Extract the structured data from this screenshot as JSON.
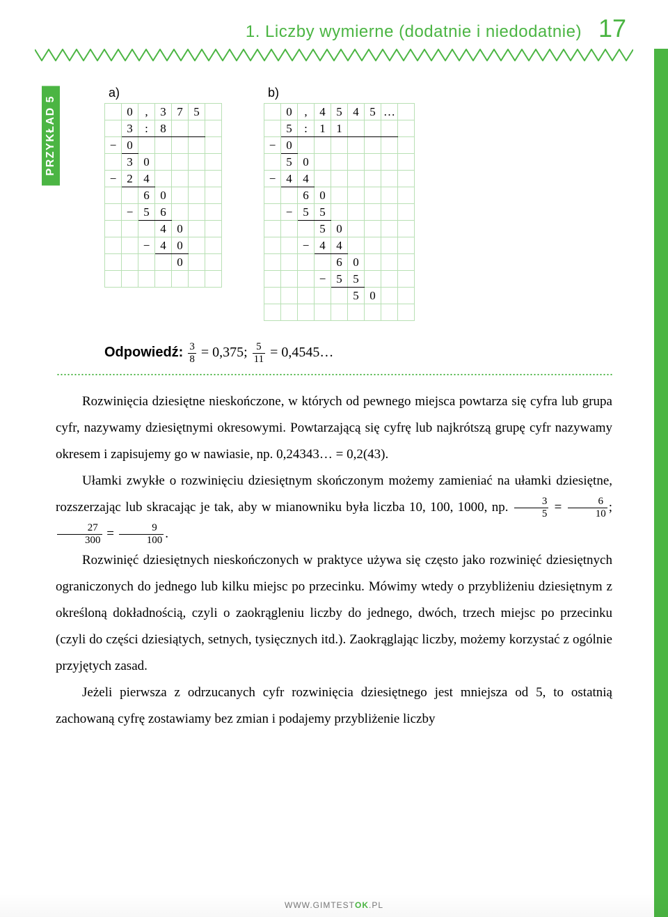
{
  "header": {
    "title": "1. Liczby wymierne (dodatnie i niedodatnie)",
    "page": "17"
  },
  "example_label": "PRZYKŁAD 5",
  "colors": {
    "accent": "#4bb543",
    "grid": "#b8e0b4"
  },
  "divisions": {
    "a": {
      "label": "a)",
      "cols": 7,
      "rows": 11,
      "cells": [
        {
          "r": 0,
          "c": 1,
          "t": "0"
        },
        {
          "r": 0,
          "c": 2,
          "t": ","
        },
        {
          "r": 0,
          "c": 3,
          "t": "3"
        },
        {
          "r": 0,
          "c": 4,
          "t": "7"
        },
        {
          "r": 0,
          "c": 5,
          "t": "5"
        },
        {
          "r": 1,
          "c": 1,
          "t": "3",
          "ub": true
        },
        {
          "r": 1,
          "c": 2,
          "t": ":",
          "ub": true
        },
        {
          "r": 1,
          "c": 3,
          "t": "8",
          "ub": true
        },
        {
          "r": 1,
          "c": 4,
          "t": "",
          "ub": true
        },
        {
          "r": 1,
          "c": 5,
          "t": "",
          "ub": true
        },
        {
          "r": 2,
          "c": 0,
          "t": "−"
        },
        {
          "r": 2,
          "c": 1,
          "t": "0",
          "ub": true
        },
        {
          "r": 3,
          "c": 1,
          "t": "3"
        },
        {
          "r": 3,
          "c": 2,
          "t": "0"
        },
        {
          "r": 4,
          "c": 0,
          "t": "−"
        },
        {
          "r": 4,
          "c": 1,
          "t": "2",
          "ub": true
        },
        {
          "r": 4,
          "c": 2,
          "t": "4",
          "ub": true
        },
        {
          "r": 5,
          "c": 2,
          "t": "6"
        },
        {
          "r": 5,
          "c": 3,
          "t": "0"
        },
        {
          "r": 6,
          "c": 1,
          "t": "−"
        },
        {
          "r": 6,
          "c": 2,
          "t": "5",
          "ub": true
        },
        {
          "r": 6,
          "c": 3,
          "t": "6",
          "ub": true
        },
        {
          "r": 7,
          "c": 3,
          "t": "4"
        },
        {
          "r": 7,
          "c": 4,
          "t": "0"
        },
        {
          "r": 8,
          "c": 2,
          "t": "−"
        },
        {
          "r": 8,
          "c": 3,
          "t": "4",
          "ub": true
        },
        {
          "r": 8,
          "c": 4,
          "t": "0",
          "ub": true
        },
        {
          "r": 9,
          "c": 4,
          "t": "0"
        }
      ]
    },
    "b": {
      "label": "b)",
      "cols": 9,
      "rows": 13,
      "cells": [
        {
          "r": 0,
          "c": 1,
          "t": "0"
        },
        {
          "r": 0,
          "c": 2,
          "t": ","
        },
        {
          "r": 0,
          "c": 3,
          "t": "4"
        },
        {
          "r": 0,
          "c": 4,
          "t": "5"
        },
        {
          "r": 0,
          "c": 5,
          "t": "4"
        },
        {
          "r": 0,
          "c": 6,
          "t": "5"
        },
        {
          "r": 0,
          "c": 7,
          "t": "…"
        },
        {
          "r": 1,
          "c": 1,
          "t": "5",
          "ub": true
        },
        {
          "r": 1,
          "c": 2,
          "t": ":",
          "ub": true
        },
        {
          "r": 1,
          "c": 3,
          "t": "1",
          "ub": true
        },
        {
          "r": 1,
          "c": 4,
          "t": "1",
          "ub": true
        },
        {
          "r": 1,
          "c": 5,
          "t": "",
          "ub": true
        },
        {
          "r": 1,
          "c": 6,
          "t": "",
          "ub": true
        },
        {
          "r": 1,
          "c": 7,
          "t": "",
          "ub": true
        },
        {
          "r": 2,
          "c": 0,
          "t": "−"
        },
        {
          "r": 2,
          "c": 1,
          "t": "0",
          "ub": true
        },
        {
          "r": 3,
          "c": 1,
          "t": "5"
        },
        {
          "r": 3,
          "c": 2,
          "t": "0"
        },
        {
          "r": 4,
          "c": 0,
          "t": "−"
        },
        {
          "r": 4,
          "c": 1,
          "t": "4",
          "ub": true
        },
        {
          "r": 4,
          "c": 2,
          "t": "4",
          "ub": true
        },
        {
          "r": 5,
          "c": 2,
          "t": "6"
        },
        {
          "r": 5,
          "c": 3,
          "t": "0"
        },
        {
          "r": 6,
          "c": 1,
          "t": "−"
        },
        {
          "r": 6,
          "c": 2,
          "t": "5",
          "ub": true
        },
        {
          "r": 6,
          "c": 3,
          "t": "5",
          "ub": true
        },
        {
          "r": 7,
          "c": 3,
          "t": "5"
        },
        {
          "r": 7,
          "c": 4,
          "t": "0"
        },
        {
          "r": 8,
          "c": 2,
          "t": "−"
        },
        {
          "r": 8,
          "c": 3,
          "t": "4",
          "ub": true
        },
        {
          "r": 8,
          "c": 4,
          "t": "4",
          "ub": true
        },
        {
          "r": 9,
          "c": 4,
          "t": "6"
        },
        {
          "r": 9,
          "c": 5,
          "t": "0"
        },
        {
          "r": 10,
          "c": 3,
          "t": "−"
        },
        {
          "r": 10,
          "c": 4,
          "t": "5",
          "ub": true
        },
        {
          "r": 10,
          "c": 5,
          "t": "5",
          "ub": true
        },
        {
          "r": 11,
          "c": 5,
          "t": "5"
        },
        {
          "r": 11,
          "c": 6,
          "t": "0"
        }
      ]
    }
  },
  "answer": {
    "label": "Odpowiedź:",
    "f1_num": "3",
    "f1_den": "8",
    "r1": "= 0,375;",
    "f2_num": "5",
    "f2_den": "11",
    "r2": "= 0,4545…"
  },
  "paragraphs": {
    "p1": "Rozwinięcia dziesiętne nieskończone, w których od pewnego miejsca powtarza się cyfra lub grupa cyfr, nazywamy dziesiętnymi okresowymi. Powtarzającą się cyfrę lub najkrótszą grupę cyfr nazywamy okresem i zapisujemy go w nawiasie, np. 0,24343… = 0,2(43).",
    "p2a": "Ułamki zwykłe o rozwinięciu dziesiętnym skończonym możemy zamieniać na ułamki dziesiętne, rozszerzając lub skracając je tak, aby w mianowniku była liczba 10, 100, 1000, np. ",
    "fr_a_n": "3",
    "fr_a_d": "5",
    "eq1": " = ",
    "fr_b_n": "6",
    "fr_b_d": "10",
    "sep": ";   ",
    "fr_c_n": "27",
    "fr_c_d": "300",
    "eq2": " = ",
    "fr_d_n": "9",
    "fr_d_d": "100",
    "dot": ".",
    "p3": "Rozwinięć dziesiętnych nieskończonych w praktyce używa się często jako rozwinięć dziesiętnych ograniczonych do jednego lub kilku miejsc po przecinku. Mówimy wtedy o przybliżeniu dziesiętnym z określoną dokładnością, czyli o zaokrągleniu liczby do jednego, dwóch, trzech miejsc po przecinku (czyli do części dziesiątych, setnych, tysięcznych itd.). Zaokrąglając liczby, możemy korzystać z ogólnie przyjętych zasad.",
    "p4": "Jeżeli pierwsza z odrzucanych cyfr rozwinięcia dziesiętnego jest mniejsza od 5, to ostatnią zachowaną cyfrę zostawiamy bez zmian i podajemy przybliżenie liczby"
  },
  "footer": {
    "text": "WWW.GIMTEST",
    "suffix": "OK",
    "tld": ".PL"
  }
}
